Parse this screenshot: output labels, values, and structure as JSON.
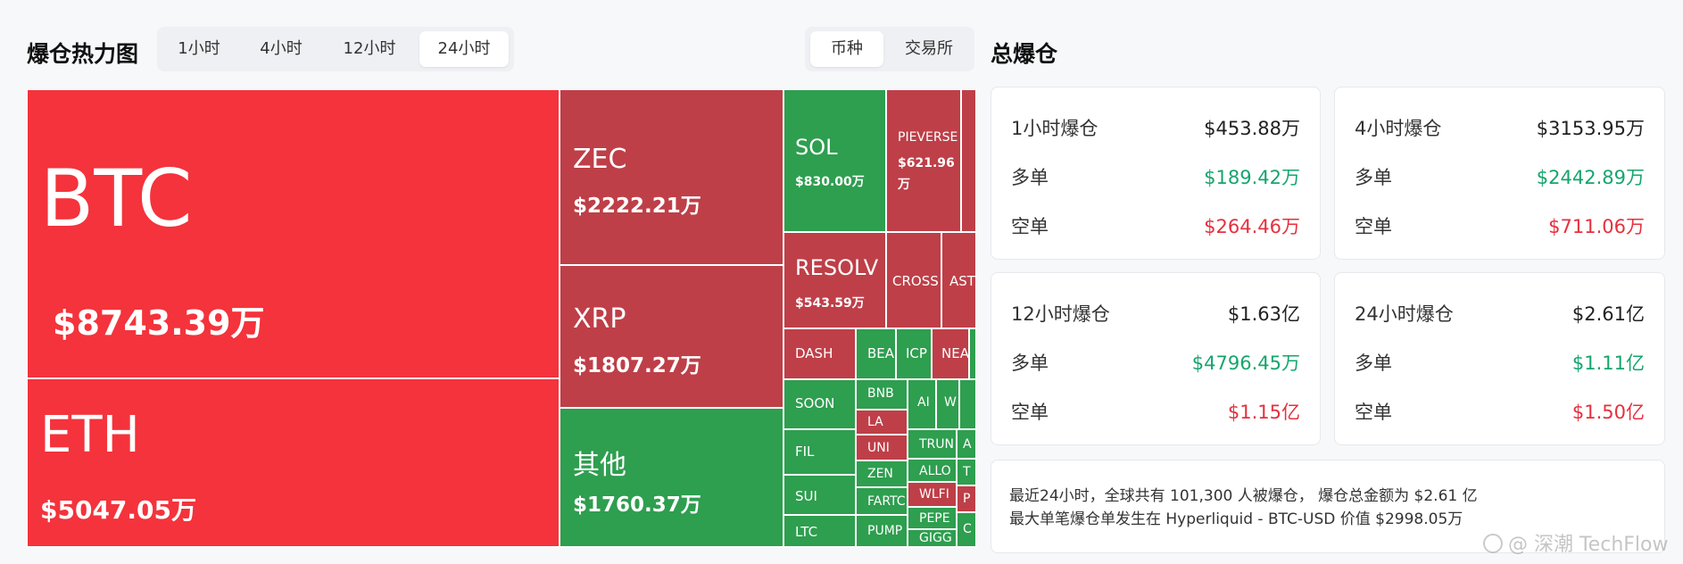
{
  "header": {
    "heatmap_title": "爆仓热力图",
    "time_tabs": [
      {
        "label": "1小时",
        "active": false
      },
      {
        "label": "4小时",
        "active": false
      },
      {
        "label": "12小时",
        "active": false
      },
      {
        "label": "24小时",
        "active": true
      }
    ],
    "group_tabs": [
      {
        "label": "币种",
        "active": true
      },
      {
        "label": "交易所",
        "active": false
      }
    ],
    "total_title": "总爆仓"
  },
  "colors": {
    "liq_red": "#f4333c",
    "liq_dark_red": "#be3f48",
    "liq_green": "#2e9e4f",
    "long_green": "#16a56e",
    "short_red": "#e5303e"
  },
  "treemap": [
    {
      "name": "BTC",
      "value": "$8743.39万",
      "color": "red"
    },
    {
      "name": "ETH",
      "value": "$5047.05万",
      "color": "red"
    },
    {
      "name": "ZEC",
      "value": "$2222.21万",
      "color": "dred"
    },
    {
      "name": "XRP",
      "value": "$1807.27万",
      "color": "dred"
    },
    {
      "name": "其他",
      "value": "$1760.37万",
      "color": "green"
    },
    {
      "name": "SOL",
      "value": "$830.00万",
      "color": "green"
    },
    {
      "name": "PIEVERSE",
      "value": "$621.96万",
      "color": "dred"
    },
    {
      "name": "",
      "value": "",
      "color": "dred"
    },
    {
      "name": "RESOLV",
      "value": "$543.59万",
      "color": "dred"
    },
    {
      "name": "CROSS",
      "value": "",
      "color": "dred"
    },
    {
      "name": "AST",
      "value": "",
      "color": "dred"
    },
    {
      "name": "DASH",
      "value": "",
      "color": "dred"
    },
    {
      "name": "BEA",
      "value": "",
      "color": "green"
    },
    {
      "name": "ICP",
      "value": "",
      "color": "green"
    },
    {
      "name": "NEA",
      "value": "",
      "color": "dred"
    },
    {
      "name": "",
      "value": "",
      "color": "green"
    },
    {
      "name": "SOON",
      "value": "",
      "color": "green"
    },
    {
      "name": "BNB",
      "value": "",
      "color": "green"
    },
    {
      "name": "AI",
      "value": "",
      "color": "green"
    },
    {
      "name": "W",
      "value": "",
      "color": "green"
    },
    {
      "name": "",
      "value": "",
      "color": "green"
    },
    {
      "name": "LA",
      "value": "",
      "color": "dred"
    },
    {
      "name": "FIL",
      "value": "",
      "color": "green"
    },
    {
      "name": "UNI",
      "value": "",
      "color": "dred"
    },
    {
      "name": "TRUN",
      "value": "",
      "color": "green"
    },
    {
      "name": "A",
      "value": "",
      "color": "green"
    },
    {
      "name": "ZEN",
      "value": "",
      "color": "green"
    },
    {
      "name": "ALLO",
      "value": "",
      "color": "green"
    },
    {
      "name": "T",
      "value": "",
      "color": "green"
    },
    {
      "name": "SUI",
      "value": "",
      "color": "green"
    },
    {
      "name": "FARTC",
      "value": "",
      "color": "green"
    },
    {
      "name": "WLFI",
      "value": "",
      "color": "dred"
    },
    {
      "name": "PEPE",
      "value": "",
      "color": "green"
    },
    {
      "name": "P",
      "value": "",
      "color": "dred"
    },
    {
      "name": "LTC",
      "value": "",
      "color": "green"
    },
    {
      "name": "PUMP",
      "value": "",
      "color": "green"
    },
    {
      "name": "GIGG",
      "value": "",
      "color": "green"
    },
    {
      "name": "C",
      "value": "",
      "color": "green"
    }
  ],
  "stats": [
    {
      "period": "1小时爆仓",
      "total": "$453.88万",
      "long_label": "多单",
      "long": "$189.42万",
      "short_label": "空单",
      "short": "$264.46万"
    },
    {
      "period": "4小时爆仓",
      "total": "$3153.95万",
      "long_label": "多单",
      "long": "$2442.89万",
      "short_label": "空单",
      "short": "$711.06万"
    },
    {
      "period": "12小时爆仓",
      "total": "$1.63亿",
      "long_label": "多单",
      "long": "$4796.45万",
      "short_label": "空单",
      "short": "$1.15亿"
    },
    {
      "period": "24小时爆仓",
      "total": "$2.61亿",
      "long_label": "多单",
      "long": "$1.11亿",
      "short_label": "空单",
      "short": "$1.50亿"
    }
  ],
  "summary": {
    "line1": "最近24小时，全球共有 101,300 人被爆仓， 爆仓总金额为 $2.61 亿",
    "line2": "最大单笔爆仓单发生在 Hyperliquid - BTC-USD 价值 $2998.05万"
  },
  "watermark": "@ 深潮 TechFlow"
}
